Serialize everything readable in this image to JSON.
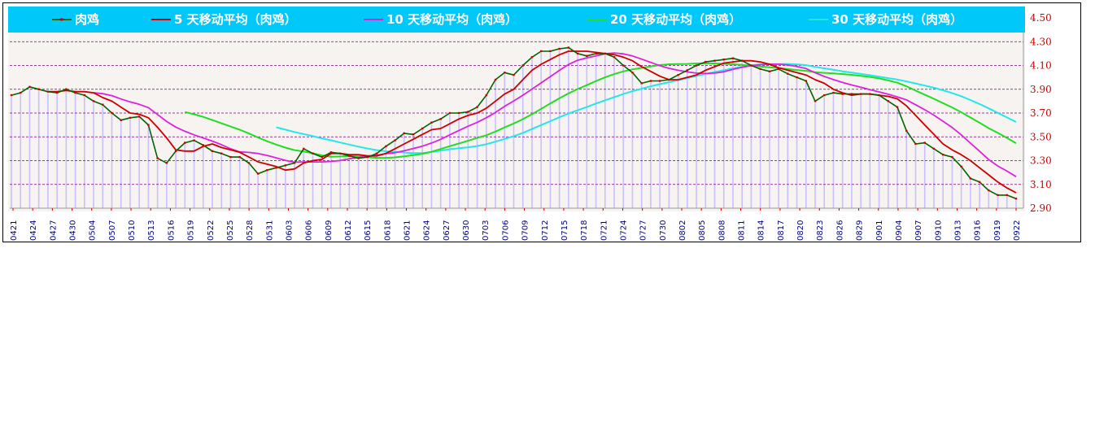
{
  "chart_data": {
    "type": "line",
    "title": "",
    "xlabel": "",
    "ylabel": "",
    "ylim": [
      2.9,
      4.5
    ],
    "yticks": [
      "4.50",
      "4.30",
      "4.10",
      "3.90",
      "3.70",
      "3.50",
      "3.30",
      "3.10",
      "2.90"
    ],
    "xticks": [
      "0421",
      "0424",
      "0427",
      "0430",
      "0504",
      "0507",
      "0510",
      "0513",
      "0516",
      "0519",
      "0522",
      "0525",
      "0528",
      "0531",
      "0603",
      "0606",
      "0609",
      "0612",
      "0615",
      "0618",
      "0621",
      "0624",
      "0627",
      "0630",
      "0703",
      "0706",
      "0709",
      "0712",
      "0715",
      "0718",
      "0721",
      "0724",
      "0727",
      "0730",
      "0802",
      "0805",
      "0808",
      "0811",
      "0814",
      "0817",
      "0820",
      "0823",
      "0826",
      "0829",
      "0901",
      "0904",
      "0907",
      "0910",
      "0913",
      "0916",
      "0919",
      "0922"
    ],
    "legend_position": "top",
    "grid": true,
    "colors": {
      "legend_bg": "#00c8f8",
      "price": "#006400",
      "price_marker": "#cc0000",
      "ma5": "#cc0000",
      "ma10": "#dd22dd",
      "ma20": "#22dd22",
      "ma30": "#22e8e8",
      "grid": "#800080",
      "bars": "#c8c0ff"
    },
    "series": [
      {
        "name": "肉鸡",
        "key": "price"
      },
      {
        "name": "5 天移动平均（肉鸡）",
        "key": "ma5"
      },
      {
        "name": "10 天移动平均（肉鸡）",
        "key": "ma10"
      },
      {
        "name": "20 天移动平均（肉鸡）",
        "key": "ma20"
      },
      {
        "name": "30 天移动平均（肉鸡）",
        "key": "ma30"
      }
    ],
    "price": [
      3.85,
      3.87,
      3.92,
      3.9,
      3.88,
      3.87,
      3.9,
      3.87,
      3.85,
      3.8,
      3.77,
      3.7,
      3.64,
      3.66,
      3.67,
      3.6,
      3.32,
      3.28,
      3.38,
      3.45,
      3.47,
      3.43,
      3.38,
      3.36,
      3.33,
      3.33,
      3.28,
      3.19,
      3.22,
      3.24,
      3.26,
      3.28,
      3.4,
      3.36,
      3.33,
      3.37,
      3.36,
      3.34,
      3.32,
      3.33,
      3.36,
      3.42,
      3.47,
      3.53,
      3.52,
      3.57,
      3.62,
      3.65,
      3.7,
      3.7,
      3.71,
      3.75,
      3.85,
      3.98,
      4.04,
      4.02,
      4.1,
      4.17,
      4.22,
      4.22,
      4.24,
      4.25,
      4.2,
      4.18,
      4.2,
      4.2,
      4.17,
      4.1,
      4.04,
      3.95,
      3.97,
      3.97,
      3.98,
      4.02,
      4.06,
      4.1,
      4.13,
      4.14,
      4.15,
      4.16,
      4.14,
      4.1,
      4.07,
      4.05,
      4.07,
      4.03,
      4.0,
      3.97,
      3.8,
      3.85,
      3.87,
      3.86,
      3.86,
      3.86,
      3.86,
      3.85,
      3.8,
      3.75,
      3.55,
      3.44,
      3.45,
      3.4,
      3.35,
      3.33,
      3.25,
      3.15,
      3.12,
      3.05,
      3.01,
      3.01,
      2.98
    ],
    "ma5": [
      null,
      null,
      null,
      null,
      3.88,
      3.88,
      3.89,
      3.88,
      3.88,
      3.87,
      3.83,
      3.8,
      3.75,
      3.7,
      3.69,
      3.66,
      3.58,
      3.49,
      3.39,
      3.38,
      3.38,
      3.42,
      3.44,
      3.41,
      3.39,
      3.37,
      3.33,
      3.29,
      3.27,
      3.25,
      3.22,
      3.23,
      3.28,
      3.3,
      3.31,
      3.36,
      3.36,
      3.35,
      3.35,
      3.34,
      3.34,
      3.36,
      3.4,
      3.44,
      3.48,
      3.52,
      3.56,
      3.57,
      3.61,
      3.65,
      3.68,
      3.7,
      3.74,
      3.8,
      3.86,
      3.9,
      3.98,
      4.06,
      4.11,
      4.15,
      4.19,
      4.22,
      4.22,
      4.22,
      4.21,
      4.2,
      4.19,
      4.17,
      4.14,
      4.09,
      4.05,
      4.01,
      3.98,
      3.98,
      4.0,
      4.02,
      4.06,
      4.09,
      4.12,
      4.13,
      4.14,
      4.14,
      4.13,
      4.11,
      4.08,
      4.06,
      4.04,
      4.02,
      3.98,
      3.95,
      3.9,
      3.87,
      3.85,
      3.86,
      3.86,
      3.85,
      3.84,
      3.82,
      3.76,
      3.68,
      3.6,
      3.52,
      3.44,
      3.39,
      3.35,
      3.3,
      3.24,
      3.18,
      3.12,
      3.07,
      3.03
    ]
  },
  "footer_note": ""
}
